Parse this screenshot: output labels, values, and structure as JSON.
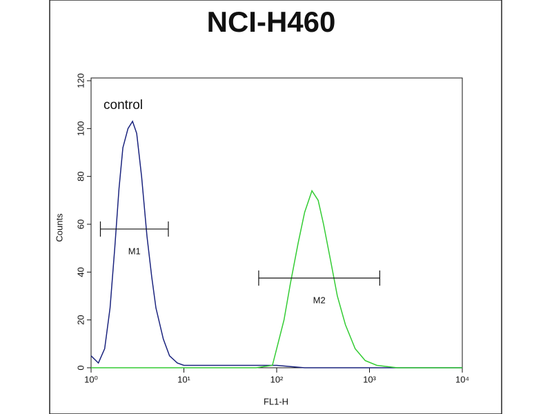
{
  "chart_data": {
    "type": "histogram-overlay",
    "title": "NCI-H460",
    "x_label": "FL1-H",
    "y_label": "Counts",
    "log_x": true,
    "xlim": [
      1,
      10000
    ],
    "ylim": [
      0,
      120
    ],
    "xticks": [
      {
        "value": 1,
        "label": "10⁰"
      },
      {
        "value": 10,
        "label": "10¹"
      },
      {
        "value": 100,
        "label": "10²"
      },
      {
        "value": 1000,
        "label": "10³"
      },
      {
        "value": 10000,
        "label": "10⁴"
      }
    ],
    "yticks": [
      0,
      20,
      40,
      60,
      80,
      100,
      120
    ],
    "series": [
      {
        "name": "control",
        "color": "#1a237e",
        "x": [
          1.0,
          1.2,
          1.4,
          1.6,
          1.8,
          2.0,
          2.2,
          2.5,
          2.8,
          3.1,
          3.5,
          4.0,
          4.5,
          5.0,
          6.0,
          7.0,
          8.5,
          10,
          20,
          50,
          100,
          200,
          1000,
          10000
        ],
        "values": [
          5,
          2,
          8,
          25,
          50,
          75,
          92,
          100,
          103,
          98,
          80,
          55,
          38,
          25,
          12,
          5,
          2,
          1,
          1,
          1,
          1,
          0,
          0,
          0
        ]
      },
      {
        "color": "#33cc33",
        "x": [
          1,
          60,
          90,
          100,
          120,
          140,
          170,
          200,
          240,
          280,
          320,
          380,
          450,
          550,
          700,
          900,
          1200,
          2000,
          10000
        ],
        "values": [
          0,
          0,
          1,
          8,
          20,
          35,
          52,
          65,
          74,
          70,
          60,
          45,
          30,
          18,
          8,
          3,
          1,
          0,
          0
        ]
      }
    ],
    "markers": [
      {
        "label": "M1",
        "x": [
          1.26,
          6.8
        ],
        "y": 58
      },
      {
        "label": "M2",
        "x": [
          64,
          1290
        ],
        "y": 37.5
      }
    ]
  }
}
